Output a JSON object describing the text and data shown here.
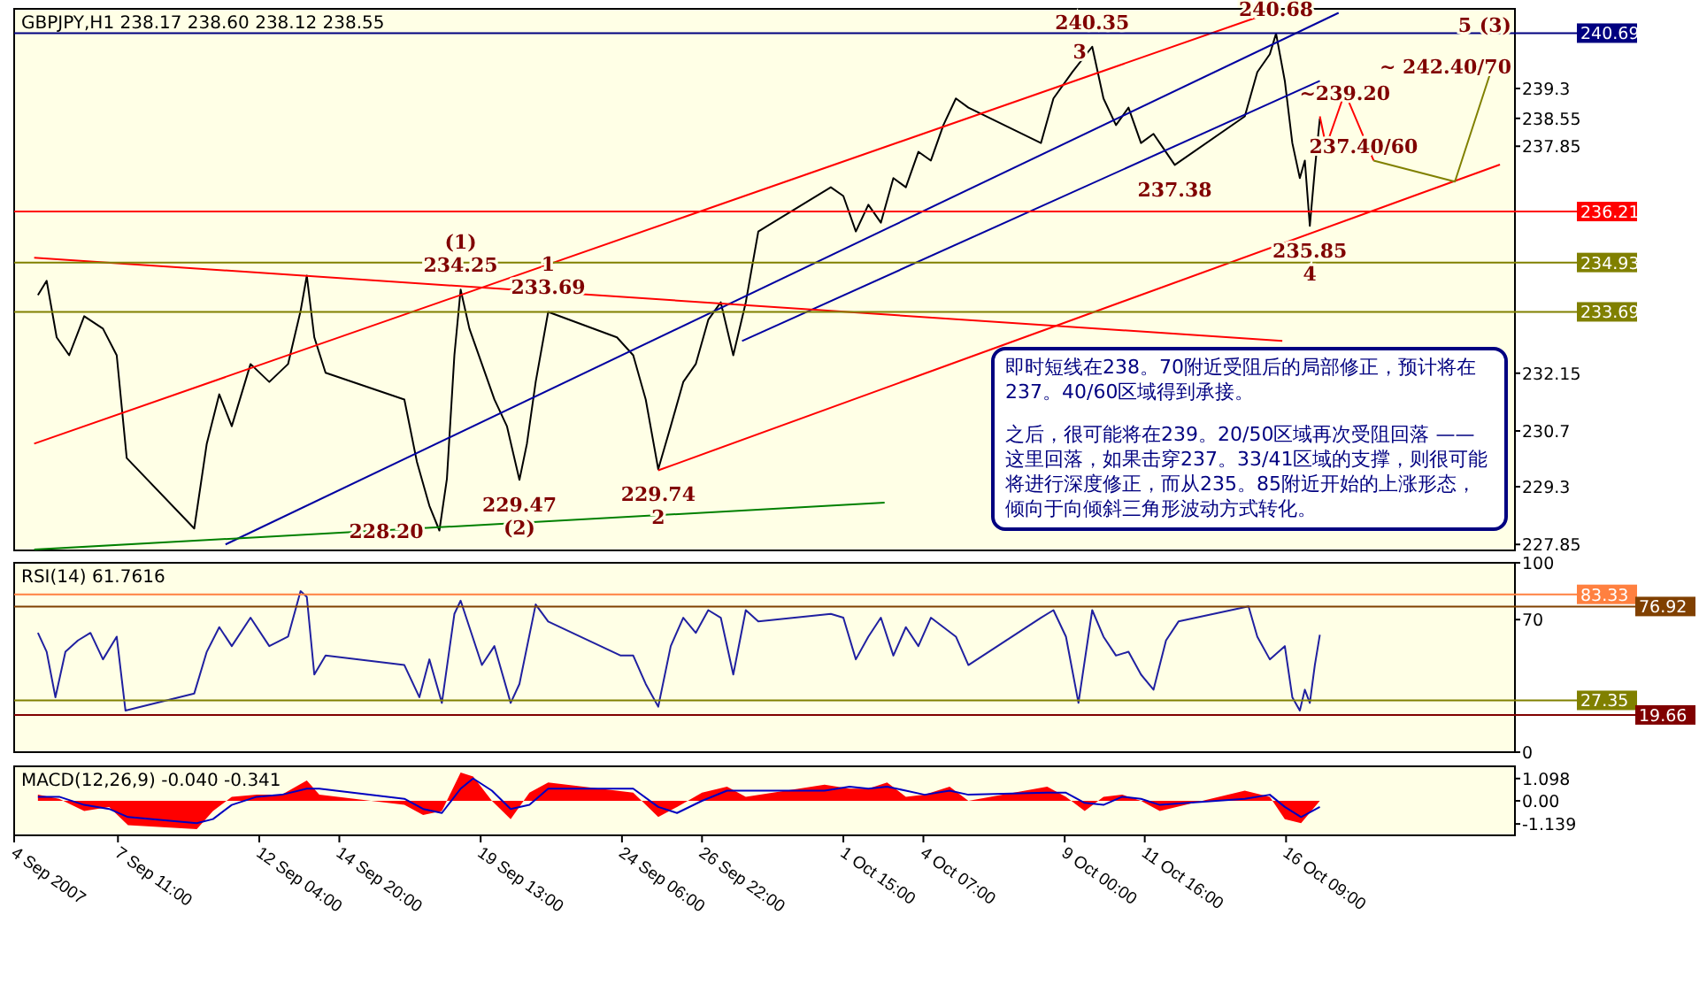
{
  "chart_data": [
    {
      "type": "line",
      "title": "GBPJPY,H1 238.17 238.60 238.12 238.55",
      "xlim": [
        "2007-09-04T00:00",
        "2007-10-24T00:00"
      ],
      "ylim": [
        227.7,
        241.3
      ],
      "yticks": [
        239.3,
        238.55,
        237.85,
        232.15,
        230.7,
        229.3,
        227.85
      ],
      "tick_labels": "y",
      "x": [
        "2007-09-04T19:00",
        "2007-09-05T02:00",
        "2007-09-05T10:00",
        "2007-09-05T20:00",
        "2007-09-06T08:00",
        "2007-09-06T23:00",
        "2007-09-07T10:00",
        "2007-09-07T18:00",
        "2007-09-10T00:00",
        "2007-09-10T10:00",
        "2007-09-10T20:00",
        "2007-09-11T06:00",
        "2007-09-11T21:00",
        "2007-09-12T12:00",
        "2007-09-13T03:00",
        "2007-09-13T13:00",
        "2007-09-13T18:00",
        "2007-09-14T00:00",
        "2007-09-14T09:00",
        "2007-09-17T00:00",
        "2007-09-17T10:00",
        "2007-09-17T20:00",
        "2007-09-18T04:00",
        "2007-09-18T10:00",
        "2007-09-18T16:00",
        "2007-09-18T21:00",
        "2007-09-19T04:00",
        "2007-09-19T14:00",
        "2007-09-20T00:00",
        "2007-09-20T10:00",
        "2007-09-20T20:00",
        "2007-09-21T02:00",
        "2007-09-21T09:00",
        "2007-09-21T19:00",
        "2007-09-24T02:00",
        "2007-09-24T15:00",
        "2007-09-25T01:00",
        "2007-09-25T11:00",
        "2007-09-25T21:00",
        "2007-09-26T07:00",
        "2007-09-26T17:00",
        "2007-09-27T03:00",
        "2007-09-27T13:00",
        "2007-09-27T23:00",
        "2007-09-28T09:00",
        "2007-09-28T19:00",
        "2007-10-01T05:00",
        "2007-10-01T15:00",
        "2007-10-02T01:00",
        "2007-10-02T11:00",
        "2007-10-02T21:00",
        "2007-10-03T07:00",
        "2007-10-03T17:00",
        "2007-10-04T03:00",
        "2007-10-04T13:00",
        "2007-10-04T23:00",
        "2007-10-05T09:00",
        "2007-10-05T19:00",
        "2007-10-08T05:00",
        "2007-10-08T15:00",
        "2007-10-09T06:00",
        "2007-10-09T22:00",
        "2007-10-10T07:00",
        "2007-10-10T17:00",
        "2007-10-11T03:00",
        "2007-10-11T13:00",
        "2007-10-11T23:00",
        "2007-10-12T04:00",
        "2007-10-12T16:00",
        "2007-10-15T00:00",
        "2007-10-15T10:00",
        "2007-10-15T20:00",
        "2007-10-16T01:00",
        "2007-10-16T08:00",
        "2007-10-16T14:00",
        "2007-10-16T20:00",
        "2007-10-17T00:00",
        "2007-10-17T04:00",
        "2007-10-17T08:00",
        "2007-10-17T12:00"
      ],
      "series": [
        {
          "color": "#000000",
          "values": [
            234.11,
            234.47,
            233.05,
            232.6,
            233.58,
            233.27,
            232.6,
            230.02,
            228.25,
            230.38,
            231.62,
            230.82,
            232.38,
            231.93,
            232.38,
            233.71,
            234.6,
            233.05,
            232.16,
            231.49,
            229.93,
            228.82,
            228.2,
            229.49,
            232.6,
            234.25,
            233.27,
            232.38,
            231.49,
            230.82,
            229.47,
            230.38,
            231.93,
            233.69,
            233.05,
            232.6,
            231.49,
            229.74,
            230.82,
            231.93,
            232.38,
            233.49,
            233.93,
            232.6,
            233.93,
            235.71,
            236.82,
            236.6,
            235.71,
            236.38,
            235.93,
            237.05,
            236.82,
            237.71,
            237.49,
            238.38,
            239.05,
            238.82,
            237.93,
            239.05,
            239.71,
            240.35,
            239.05,
            238.38,
            238.82,
            237.93,
            238.16,
            237.93,
            237.38,
            238.6,
            239.71,
            240.16,
            240.68,
            239.49,
            237.93,
            237.05,
            237.49,
            235.85,
            237.27,
            238.55
          ]
        },
        {
          "type": "line",
          "color": "#ff0000",
          "x": [
            "2007-09-04T16:00",
            "2007-10-15T20:00"
          ],
          "values": [
            230.38,
            241.2
          ]
        },
        {
          "type": "line",
          "color": "#0000a0",
          "x": [
            "2007-09-11T01:00",
            "2007-10-18T03:00"
          ],
          "values": [
            227.85,
            241.2
          ]
        },
        {
          "type": "line",
          "color": "#0000a0",
          "x": [
            "2007-09-28T06:00",
            "2007-10-17T12:00"
          ],
          "values": [
            232.96,
            239.49
          ]
        },
        {
          "type": "line",
          "color": "#ff0000",
          "x": [
            "2007-09-25T11:00",
            "2007-10-23T12:00"
          ],
          "values": [
            229.71,
            237.39
          ]
        },
        {
          "type": "line",
          "color": "#ff0000",
          "x": [
            "2007-09-04T16:00",
            "2007-10-16T06:00"
          ],
          "values": [
            235.05,
            232.96
          ]
        },
        {
          "type": "line",
          "color": "#008000",
          "x": [
            "2007-09-04T16:00",
            "2007-10-03T00:00"
          ],
          "values": [
            227.72,
            228.9
          ]
        },
        {
          "type": "line",
          "color": "#ff0000",
          "x": [
            "2007-10-17T12:00",
            "2007-10-17T17:00",
            "2007-10-18T08:00",
            "2007-10-19T07:00"
          ],
          "values": [
            238.6,
            237.85,
            239.2,
            237.49
          ]
        },
        {
          "type": "line",
          "color": "#808000",
          "x": [
            "2007-10-19T07:00",
            "2007-10-22T00:00",
            "2007-10-23T06:00"
          ],
          "values": [
            237.49,
            236.96,
            239.85
          ]
        }
      ],
      "ref_lines": [
        {
          "axis": "y",
          "value": 240.69,
          "label": "240.69",
          "color": "#000080"
        },
        {
          "axis": "y",
          "value": 236.21,
          "label": "236.21",
          "color": "#ff0000"
        },
        {
          "axis": "y",
          "value": 234.93,
          "label": "234.93",
          "color": "#808000"
        },
        {
          "axis": "y",
          "value": 233.69,
          "label": "233.69",
          "color": "#808000"
        }
      ],
      "annotations": [
        {
          "text": "240.35",
          "x": "2007-10-09T22:00",
          "y": 240.35
        },
        {
          "text": "240.68",
          "x": "2007-10-16T01:00",
          "y": 240.68
        },
        {
          "text": "3",
          "x": "2007-10-09T12:00",
          "y": 240.24
        },
        {
          "text": "5",
          "x": "2007-10-22T08:00",
          "y": 240.9
        },
        {
          "text": "(3)",
          "x": "2007-10-23T14:00",
          "y": 240.9
        },
        {
          "text": "~ 242.40/70",
          "x": "2007-10-23T06:00",
          "y": 239.85
        },
        {
          "text": "~239.20",
          "x": "2007-10-18T08:00",
          "y": 239.2
        },
        {
          "text": "237.40/60",
          "x": "2007-10-18T23:00",
          "y": 237.85
        },
        {
          "text": "237.38",
          "x": "2007-10-12T16:00",
          "y": 237.38
        },
        {
          "text": "235.85",
          "x": "2007-10-17T04:00",
          "y": 235.85
        },
        {
          "text": "4",
          "x": "2007-10-17T04:00",
          "y": 235.85
        },
        {
          "text": "234.25",
          "x": "2007-09-18T21:00",
          "y": 234.25
        },
        {
          "text": "(1)",
          "x": "2007-09-18T21:00",
          "y": 234.25
        },
        {
          "text": "233.69",
          "x": "2007-09-21T19:00",
          "y": 233.69
        },
        {
          "text": "1",
          "x": "2007-09-21T19:00",
          "y": 233.69
        },
        {
          "text": "229.47",
          "x": "2007-09-20T20:00",
          "y": 229.47
        },
        {
          "text": "(2)",
          "x": "2007-09-20T20:00",
          "y": 229.47
        },
        {
          "text": "229.74",
          "x": "2007-09-25T11:00",
          "y": 229.74
        },
        {
          "text": "2",
          "x": "2007-09-25T11:00",
          "y": 229.74
        },
        {
          "text": "228.20",
          "x": "2007-09-18T04:00",
          "y": 228.2
        },
        "即时短线在238。70附近受阻后的局部修正，预计将在237。40/60区域得到承接。",
        "之后，很可能将在239。20/50区域再次受阻回落 —— 这里回落，如果击穿237。33/41区域的支撑，则很可能将进行深度修正，而从235。85附近开始的上涨形态，倾向于向倾斜三角形波动方式转化。"
      ]
    },
    {
      "type": "line",
      "title": "RSI(14) 61.7616",
      "xlim": [
        "2007-09-04T00:00",
        "2007-10-24T00:00"
      ],
      "ylim": [
        0,
        100
      ],
      "yticks": [
        100,
        70,
        0
      ],
      "tick_labels": "y",
      "x": [
        "2007-09-04T19:00",
        "2007-09-05T02:00",
        "2007-09-05T09:00",
        "2007-09-05T17:00",
        "2007-09-06T03:00",
        "2007-09-06T13:00",
        "2007-09-06T23:00",
        "2007-09-07T10:00",
        "2007-09-07T17:00",
        "2007-09-10T00:00",
        "2007-09-10T10:00",
        "2007-09-10T20:00",
        "2007-09-11T06:00",
        "2007-09-11T21:00",
        "2007-09-12T12:00",
        "2007-09-13T03:00",
        "2007-09-13T13:00",
        "2007-09-13T18:00",
        "2007-09-14T00:00",
        "2007-09-14T09:00",
        "2007-09-17T00:00",
        "2007-09-17T12:00",
        "2007-09-17T20:00",
        "2007-09-18T06:00",
        "2007-09-18T16:00",
        "2007-09-18T21:00",
        "2007-09-19T04:00",
        "2007-09-19T14:00",
        "2007-09-20T00:00",
        "2007-09-20T13:00",
        "2007-09-20T20:00",
        "2007-09-21T09:00",
        "2007-09-21T19:00",
        "2007-09-24T05:00",
        "2007-09-24T15:00",
        "2007-09-25T01:00",
        "2007-09-25T11:00",
        "2007-09-25T21:00",
        "2007-09-26T07:00",
        "2007-09-26T17:00",
        "2007-09-27T03:00",
        "2007-09-27T13:00",
        "2007-09-27T23:00",
        "2007-09-28T09:00",
        "2007-09-28T19:00",
        "2007-10-01T05:00",
        "2007-10-01T15:00",
        "2007-10-02T01:00",
        "2007-10-02T11:00",
        "2007-10-02T21:00",
        "2007-10-03T07:00",
        "2007-10-03T17:00",
        "2007-10-04T03:00",
        "2007-10-04T13:00",
        "2007-10-04T23:00",
        "2007-10-05T09:00",
        "2007-10-05T19:00",
        "2007-10-08T05:00",
        "2007-10-08T15:00",
        "2007-10-09T01:00",
        "2007-10-09T11:00",
        "2007-10-09T22:00",
        "2007-10-10T07:00",
        "2007-10-10T17:00",
        "2007-10-11T03:00",
        "2007-10-11T13:00",
        "2007-10-11T23:00",
        "2007-10-12T09:00",
        "2007-10-12T19:00",
        "2007-10-15T03:00",
        "2007-10-15T10:00",
        "2007-10-15T20:00",
        "2007-10-16T08:00",
        "2007-10-16T14:00",
        "2007-10-16T20:00",
        "2007-10-17T00:00",
        "2007-10-17T04:00",
        "2007-10-17T08:00",
        "2007-10-17T12:00"
      ],
      "series": [
        {
          "color": "#2020a0",
          "values": [
            63,
            53,
            29,
            53,
            59,
            63,
            49,
            61,
            22,
            31,
            53,
            66,
            56,
            71,
            56,
            61,
            85,
            82,
            41,
            51,
            46,
            29,
            49,
            26,
            73,
            80,
            66,
            46,
            56,
            26,
            36,
            78,
            69,
            51,
            51,
            36,
            24,
            56,
            71,
            63,
            75,
            71,
            41,
            75,
            69,
            73,
            71,
            49,
            61,
            71,
            51,
            66,
            56,
            71,
            66,
            61,
            46,
            71,
            75,
            61,
            26,
            75,
            61,
            51,
            53,
            41,
            33,
            59,
            69,
            77,
            61,
            49,
            56,
            29,
            22,
            33,
            26,
            46,
            62
          ]
        }
      ],
      "ref_lines": [
        {
          "axis": "y",
          "value": 83.33,
          "label": "83.33",
          "color": "#ff8040"
        },
        {
          "axis": "y",
          "value": 76.92,
          "label": "76.92",
          "color": "#804000"
        },
        {
          "axis": "y",
          "value": 27.35,
          "label": "27.35",
          "color": "#808000"
        },
        {
          "axis": "y",
          "value": 19.66,
          "label": "19.66",
          "color": "#800000"
        }
      ]
    },
    {
      "type": "area",
      "title": "MACD(12,26,9) -0.040 -0.341",
      "xlim": [
        "2007-09-04T00:00",
        "2007-10-24T00:00"
      ],
      "ylim": [
        -1.7,
        1.7
      ],
      "yticks": [
        1.098,
        {
          "value": 0,
          "label": "0.00"
        },
        -1.139
      ],
      "xticks": [
        {
          "value": "2007-09-04",
          "label": "4 Sep 2007"
        },
        {
          "value": "2007-09-07T11:00",
          "label": "7 Sep 11:00"
        },
        {
          "value": "2007-09-12T04:00",
          "label": "12 Sep 04:00"
        },
        {
          "value": "2007-09-14T20:00",
          "label": "14 Sep 20:00"
        },
        {
          "value": "2007-09-19T13:00",
          "label": "19 Sep 13:00"
        },
        {
          "value": "2007-09-24T06:00",
          "label": "24 Sep 06:00"
        },
        {
          "value": "2007-09-26T22:00",
          "label": "26 Sep 22:00"
        },
        {
          "value": "2007-10-01T15:00",
          "label": "1 Oct 15:00"
        },
        {
          "value": "2007-10-04T07:00",
          "label": "4 Oct 07:00"
        },
        {
          "value": "2007-10-09T00:00",
          "label": "9 Oct 00:00"
        },
        {
          "value": "2007-10-11T16:00",
          "label": "11 Oct 16:00"
        },
        {
          "value": "2007-10-16T09:00",
          "label": "16 Oct 09:00"
        }
      ],
      "x": [
        "2007-09-04T19:00",
        "2007-09-05T12:00",
        "2007-09-06T08:00",
        "2007-09-07T04:00",
        "2007-09-07T19:00",
        "2007-09-10T02:00",
        "2007-09-10T15:00",
        "2007-09-11T06:00",
        "2007-09-12T02:00",
        "2007-09-12T22:00",
        "2007-09-13T18:00",
        "2007-09-14T04:00",
        "2007-09-17T00:00",
        "2007-09-17T15:00",
        "2007-09-18T06:00",
        "2007-09-18T21:00",
        "2007-09-19T07:00",
        "2007-09-19T22:00",
        "2007-09-20T13:00",
        "2007-09-21T04:00",
        "2007-09-21T19:00",
        "2007-09-24T15:00",
        "2007-09-25T11:00",
        "2007-09-26T02:00",
        "2007-09-26T22:00",
        "2007-09-27T18:00",
        "2007-09-28T09:00",
        "2007-10-01T00:00",
        "2007-10-01T20:00",
        "2007-10-02T11:00",
        "2007-10-03T02:00",
        "2007-10-03T17:00",
        "2007-10-04T08:00",
        "2007-10-05T04:00",
        "2007-10-05T19:00",
        "2007-10-08T10:00",
        "2007-10-09T01:00",
        "2007-10-09T16:00",
        "2007-10-10T07:00",
        "2007-10-10T22:00",
        "2007-10-11T13:00",
        "2007-10-12T04:00",
        "2007-10-15T00:00",
        "2007-10-15T20:00",
        "2007-10-16T08:00",
        "2007-10-16T21:00",
        "2007-10-17T12:00"
      ],
      "series": [
        {
          "color": "#ff0000",
          "values": [
            0.3,
            0.1,
            -0.5,
            -0.3,
            -1.2,
            -1.4,
            -0.5,
            0.2,
            0.3,
            0.3,
            1.0,
            0.3,
            -0.2,
            -0.7,
            -0.5,
            1.4,
            1.2,
            0.0,
            -0.9,
            0.4,
            0.9,
            0.4,
            -0.8,
            -0.3,
            0.4,
            0.7,
            0.2,
            0.8,
            0.6,
            0.6,
            0.9,
            0.2,
            0.3,
            0.7,
            0.0,
            0.7,
            0.2,
            -0.5,
            0.2,
            0.3,
            0.0,
            -0.5,
            0.5,
            0.2,
            -0.9,
            -1.1,
            0.0
          ]
        },
        {
          "type": "line",
          "color": "#0000c0",
          "values": [
            0.2,
            0.2,
            -0.2,
            -0.4,
            -0.8,
            -1.1,
            -0.9,
            -0.2,
            0.2,
            0.3,
            0.6,
            0.6,
            0.1,
            -0.4,
            -0.6,
            0.6,
            1.1,
            0.5,
            -0.4,
            -0.2,
            0.6,
            0.6,
            -0.3,
            -0.6,
            0.0,
            0.5,
            0.5,
            0.5,
            0.7,
            0.6,
            0.7,
            0.5,
            0.3,
            0.5,
            0.3,
            0.4,
            0.4,
            -0.1,
            -0.2,
            0.2,
            0.1,
            -0.2,
            0.1,
            0.3,
            -0.3,
            -0.8,
            -0.3
          ]
        }
      ]
    }
  ]
}
